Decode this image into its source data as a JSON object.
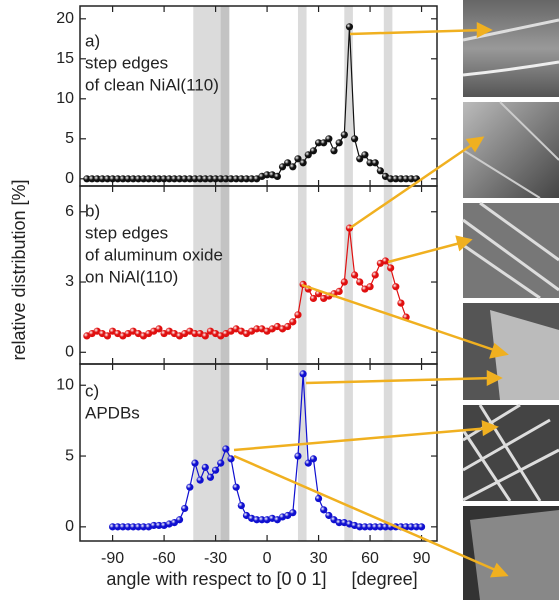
{
  "chart_data": [
    {
      "type": "line",
      "annotation": [
        "a)",
        "step edges",
        "of clean NiAl(110)"
      ],
      "x": [
        -105,
        -102,
        -99,
        -96,
        -93,
        -90,
        -87,
        -84,
        -81,
        -78,
        -75,
        -72,
        -69,
        -66,
        -63,
        -60,
        -57,
        -54,
        -51,
        -48,
        -45,
        -42,
        -39,
        -36,
        -33,
        -30,
        -27,
        -24,
        -21,
        -18,
        -15,
        -12,
        -9,
        -6,
        -3,
        0,
        3,
        6,
        9,
        12,
        15,
        18,
        21,
        24,
        27,
        30,
        33,
        36,
        39,
        42,
        45,
        48,
        51,
        54,
        57,
        60,
        63,
        66,
        69,
        72,
        75,
        78,
        81,
        84,
        87
      ],
      "series": [
        {
          "color": "#111111",
          "values": [
            0,
            0,
            0,
            0,
            0,
            0,
            0,
            0,
            0,
            0,
            0,
            0,
            0,
            0,
            0,
            0,
            0,
            0,
            0,
            0,
            0,
            0,
            0,
            0,
            0,
            0,
            0,
            0,
            0,
            0,
            0,
            0,
            0,
            0,
            0.3,
            0.5,
            0.5,
            0.3,
            1.5,
            2,
            1.5,
            2.5,
            2,
            3,
            3.5,
            4.5,
            4.5,
            5,
            3.5,
            4.5,
            5.5,
            19,
            5,
            2.5,
            3,
            2,
            2,
            1,
            0.3,
            0,
            0,
            0,
            0,
            0,
            0
          ]
        }
      ],
      "xlim": [
        -109,
        99
      ],
      "ylim": [
        -0.9,
        21.6
      ],
      "xticks": [
        -90,
        -60,
        -30,
        0,
        30,
        60,
        90
      ],
      "yticks": [
        0,
        5,
        10,
        15,
        20
      ],
      "show_xtick_labels": false,
      "shaded_ranges": [
        [
          -43,
          -22
        ],
        [
          -27,
          -22
        ],
        [
          18,
          23
        ],
        [
          45,
          50
        ],
        [
          68,
          73
        ]
      ]
    },
    {
      "type": "line",
      "annotation": [
        "b)",
        "step edges",
        "of aluminum oxide",
        "on NiAl(110)"
      ],
      "ylabel": "relative distribution  [%]",
      "x": [
        -105,
        -102,
        -99,
        -96,
        -93,
        -90,
        -87,
        -84,
        -81,
        -78,
        -75,
        -72,
        -69,
        -66,
        -63,
        -60,
        -57,
        -54,
        -51,
        -48,
        -45,
        -42,
        -39,
        -36,
        -33,
        -30,
        -27,
        -24,
        -21,
        -18,
        -15,
        -12,
        -9,
        -6,
        -3,
        0,
        3,
        6,
        9,
        12,
        15,
        18,
        21,
        24,
        27,
        30,
        33,
        36,
        39,
        42,
        45,
        48,
        51,
        54,
        57,
        60,
        63,
        66,
        69,
        72,
        75,
        78,
        81
      ],
      "series": [
        {
          "color": "#e01010",
          "values": [
            0.7,
            0.8,
            0.9,
            0.8,
            0.7,
            0.9,
            0.8,
            0.7,
            0.8,
            0.9,
            0.8,
            0.7,
            0.8,
            0.9,
            1.0,
            0.8,
            0.9,
            0.8,
            0.7,
            0.8,
            0.9,
            0.8,
            0.8,
            0.7,
            0.9,
            0.8,
            0.7,
            0.8,
            0.9,
            1.0,
            0.9,
            0.8,
            0.9,
            1.0,
            1.0,
            0.9,
            1.0,
            1.1,
            1.0,
            1.1,
            1.3,
            1.6,
            2.9,
            2.7,
            2.3,
            2.5,
            2.3,
            2.4,
            2.5,
            2.6,
            3.0,
            5.3,
            3.3,
            3.0,
            2.7,
            2.8,
            3.3,
            3.8,
            3.9,
            3.6,
            2.8,
            2.1,
            1.5
          ]
        }
      ],
      "xlim": [
        -109,
        99
      ],
      "ylim": [
        -0.5,
        7.1
      ],
      "xticks": [
        -90,
        -60,
        -30,
        0,
        30,
        60,
        90
      ],
      "yticks": [
        0,
        3,
        6
      ],
      "show_xtick_labels": false,
      "shaded_ranges": [
        [
          -43,
          -22
        ],
        [
          -27,
          -22
        ],
        [
          18,
          23
        ],
        [
          45,
          50
        ],
        [
          68,
          73
        ]
      ]
    },
    {
      "type": "line",
      "annotation": [
        "c)",
        "APDBs"
      ],
      "xlabel": "angle with respect to [0 0 1]     [degree]",
      "x": [
        -90,
        -87,
        -84,
        -81,
        -78,
        -75,
        -72,
        -69,
        -66,
        -63,
        -60,
        -57,
        -54,
        -51,
        -48,
        -45,
        -42,
        -39,
        -36,
        -33,
        -30,
        -27,
        -24,
        -21,
        -18,
        -15,
        -12,
        -9,
        -6,
        -3,
        0,
        3,
        6,
        9,
        12,
        15,
        18,
        21,
        24,
        27,
        30,
        33,
        36,
        39,
        42,
        45,
        48,
        51,
        54,
        57,
        60,
        63,
        66,
        69,
        72,
        75,
        78,
        81,
        84,
        87,
        90
      ],
      "series": [
        {
          "color": "#1010d0",
          "values": [
            0,
            0,
            0,
            0,
            0,
            0,
            0,
            0,
            0.1,
            0.1,
            0.1,
            0.2,
            0.3,
            0.5,
            1.3,
            2.8,
            4.5,
            3.3,
            4.2,
            3.5,
            4.0,
            4.5,
            5.5,
            4.8,
            2.8,
            1.5,
            0.8,
            0.6,
            0.5,
            0.5,
            0.5,
            0.6,
            0.5,
            0.7,
            0.8,
            1.0,
            5.0,
            10.8,
            4.5,
            4.8,
            2.0,
            1.2,
            0.8,
            0.5,
            0.3,
            0.3,
            0.2,
            0.1,
            0,
            0,
            0,
            0,
            0,
            0,
            0,
            0,
            0,
            0,
            0,
            0,
            0
          ]
        }
      ],
      "xlim": [
        -109,
        99
      ],
      "ylim": [
        -1.0,
        11.5
      ],
      "xticks": [
        -90,
        -60,
        -30,
        0,
        30,
        60,
        90
      ],
      "yticks": [
        0,
        5,
        10
      ],
      "show_xtick_labels": true,
      "shaded_ranges": [
        [
          -43,
          -22
        ],
        [
          -27,
          -22
        ],
        [
          18,
          23
        ],
        [
          45,
          50
        ],
        [
          68,
          73
        ]
      ]
    }
  ]
}
